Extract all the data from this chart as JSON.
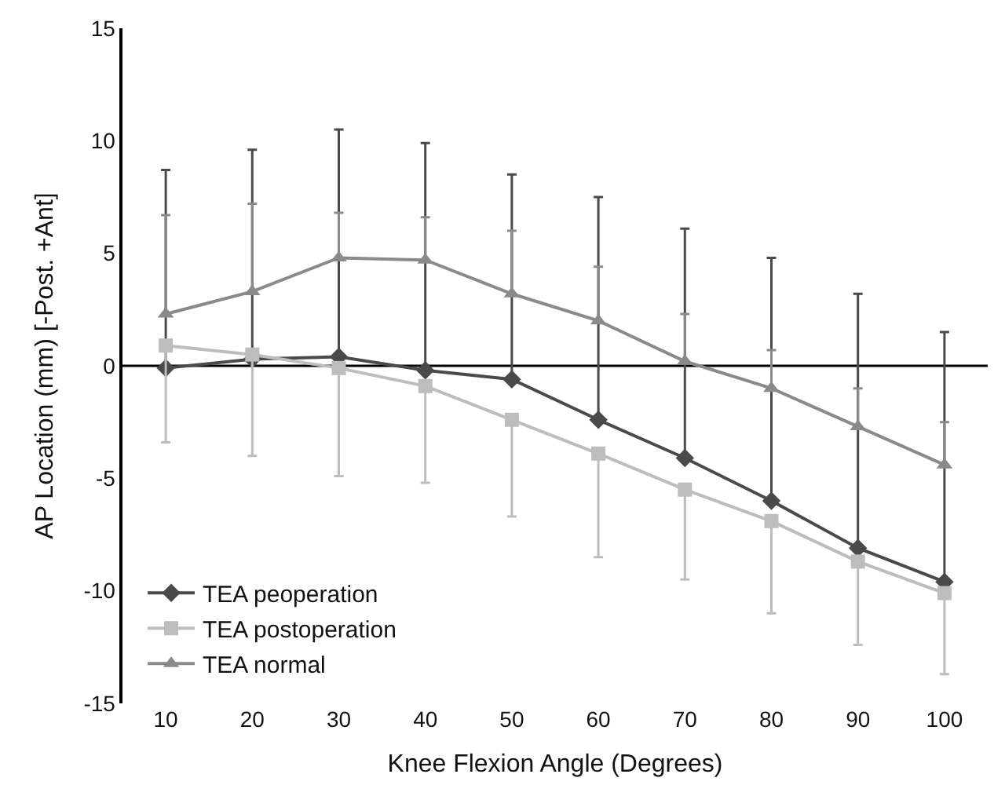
{
  "chart_data": {
    "type": "line",
    "xlabel": "Knee Flexion Angle (Degrees)",
    "ylabel": "AP Location (mm) [-Post. +Ant]",
    "categories": [
      "10",
      "20",
      "30",
      "40",
      "50",
      "60",
      "70",
      "80",
      "90",
      "100"
    ],
    "ylim": [
      -15,
      15
    ],
    "yticks": [
      -15,
      -10,
      -5,
      0,
      5,
      10,
      15
    ],
    "legend": "bottom left",
    "ref_lines": [
      {
        "axis": "y",
        "value": 0,
        "color": "#000000"
      }
    ],
    "series": [
      {
        "name": "TEA peoperation",
        "color": "#4a4a4a",
        "marker": "diamond",
        "values": [
          -0.1,
          0.3,
          0.4,
          -0.2,
          -0.6,
          -2.4,
          -4.1,
          -6.0,
          -8.1,
          -9.6
        ],
        "errors": [
          [
            -0.1,
            8.7
          ],
          [
            0.3,
            9.6
          ],
          [
            0.4,
            10.5
          ],
          [
            -0.2,
            9.9
          ],
          [
            -0.6,
            8.5
          ],
          [
            -2.4,
            7.5
          ],
          [
            -4.1,
            6.1
          ],
          [
            -6.0,
            4.8
          ],
          [
            -8.1,
            3.2
          ],
          [
            -9.6,
            1.5
          ]
        ]
      },
      {
        "name": "TEA postoperation",
        "color": "#bdbdbd",
        "marker": "square",
        "values": [
          0.9,
          0.5,
          -0.1,
          -0.9,
          -2.4,
          -3.9,
          -5.5,
          -6.9,
          -8.7,
          -10.1
        ],
        "errors": [
          [
            -3.4,
            0.9
          ],
          [
            -4.0,
            0.5
          ],
          [
            -4.9,
            -0.1
          ],
          [
            -5.2,
            -0.9
          ],
          [
            -6.7,
            -2.4
          ],
          [
            -8.5,
            -3.9
          ],
          [
            -9.5,
            -5.5
          ],
          [
            -11.0,
            -6.9
          ],
          [
            -12.4,
            -8.7
          ],
          [
            -13.7,
            -10.1
          ]
        ]
      },
      {
        "name": "TEA normal",
        "color": "#8a8a8a",
        "marker": "triangle",
        "values": [
          2.3,
          3.3,
          4.8,
          4.7,
          3.2,
          2.0,
          0.2,
          -1.0,
          -2.7,
          -4.4
        ],
        "errors": [
          [
            2.3,
            6.7
          ],
          [
            3.3,
            7.2
          ],
          [
            4.8,
            6.8
          ],
          [
            4.7,
            6.6
          ],
          [
            3.2,
            6.0
          ],
          [
            2.0,
            4.4
          ],
          [
            0.2,
            2.3
          ],
          [
            -1.0,
            0.7
          ],
          [
            -2.7,
            -1.0
          ],
          [
            -4.4,
            -2.5
          ]
        ]
      }
    ]
  }
}
